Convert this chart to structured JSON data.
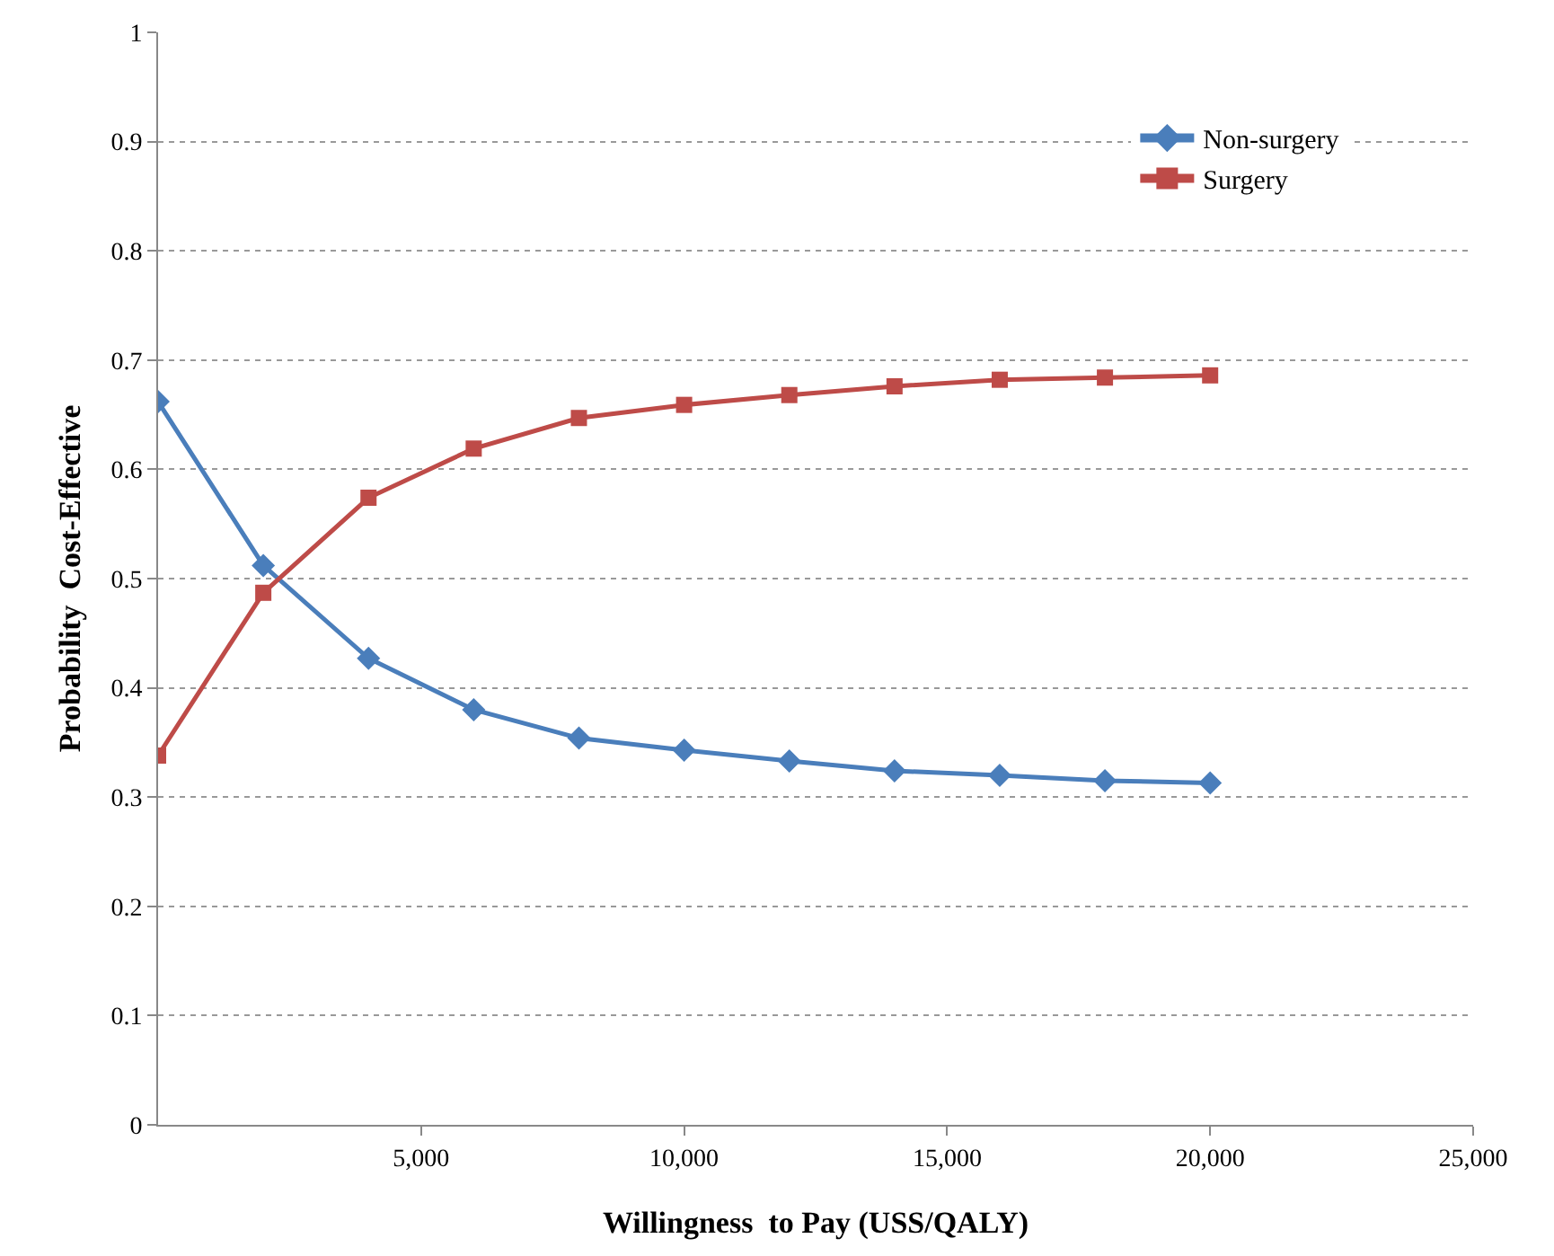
{
  "chart_data": {
    "type": "line",
    "xlabel": "Willingness  to Pay (USS/QALY)",
    "ylabel": "Probability  Cost-Effective",
    "x": [
      0,
      2000,
      4000,
      6000,
      8000,
      10000,
      12000,
      14000,
      16000,
      18000,
      20000
    ],
    "series": [
      {
        "name": "Non-surgery",
        "color": "#4a7ebb",
        "marker": "diamond",
        "values": [
          0.662,
          0.512,
          0.427,
          0.38,
          0.354,
          0.343,
          0.333,
          0.324,
          0.32,
          0.315,
          0.313
        ]
      },
      {
        "name": "Surgery",
        "color": "#be4b48",
        "marker": "square",
        "values": [
          0.338,
          0.487,
          0.574,
          0.619,
          0.647,
          0.659,
          0.668,
          0.676,
          0.682,
          0.684,
          0.686
        ]
      }
    ],
    "xlim": [
      0,
      25000
    ],
    "xticks": [
      {
        "value": 5000,
        "label": "5,000"
      },
      {
        "value": 10000,
        "label": "10,000"
      },
      {
        "value": 15000,
        "label": "15,000"
      },
      {
        "value": 20000,
        "label": "20,000"
      },
      {
        "value": 25000,
        "label": "25,000"
      }
    ],
    "ylim": [
      0,
      1
    ],
    "yticks": [
      0,
      0.1,
      0.2,
      0.3,
      0.4,
      0.5,
      0.6,
      0.7,
      0.8,
      0.9,
      1
    ],
    "grid": "y",
    "legend": "top right",
    "line_style": "solid"
  }
}
